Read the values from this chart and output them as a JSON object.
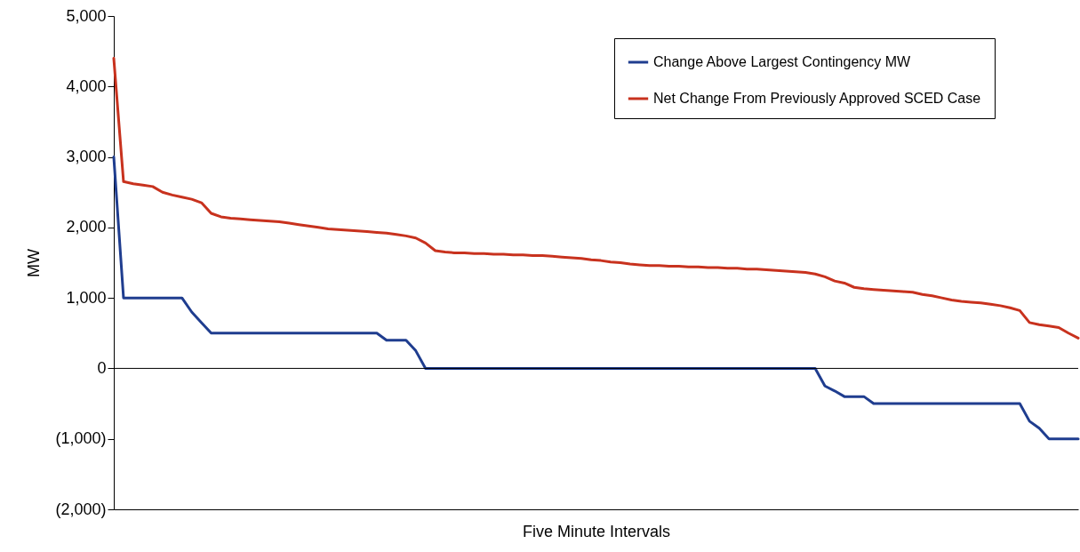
{
  "chart_data": {
    "type": "line",
    "xlabel": "Five Minute Intervals",
    "ylabel": "MW",
    "categories": [
      null,
      null,
      null,
      null,
      null,
      null,
      null,
      null,
      null,
      null,
      null,
      null,
      null,
      null,
      null,
      null,
      null,
      null,
      null,
      null,
      null,
      null,
      null,
      null,
      null,
      null,
      null,
      null,
      null,
      null,
      null,
      null,
      null,
      null,
      null,
      null,
      null,
      null,
      null,
      null,
      null,
      null,
      null,
      null,
      null,
      null,
      null,
      null,
      null,
      null,
      null,
      null,
      null,
      null,
      null,
      null,
      null,
      null,
      null,
      null,
      null,
      null,
      null,
      null,
      null,
      null,
      null,
      null,
      null,
      null,
      null,
      null,
      null,
      null,
      null,
      null,
      null,
      null,
      null,
      null,
      null,
      null,
      null,
      null,
      null,
      null,
      null,
      null,
      null,
      null,
      null,
      null,
      null,
      null,
      null,
      null,
      null,
      null,
      null,
      null
    ],
    "series": [
      {
        "name": "Change Above Largest Contingency MW",
        "color": "#1f3d8f",
        "values": [
          3000,
          1000,
          1000,
          1000,
          1000,
          1000,
          1000,
          1000,
          800,
          650,
          500,
          500,
          500,
          500,
          500,
          500,
          500,
          500,
          500,
          500,
          500,
          500,
          500,
          500,
          500,
          500,
          500,
          500,
          400,
          400,
          400,
          250,
          0,
          0,
          0,
          0,
          0,
          0,
          0,
          0,
          0,
          0,
          0,
          0,
          0,
          0,
          0,
          0,
          0,
          0,
          0,
          0,
          0,
          0,
          0,
          0,
          0,
          0,
          0,
          0,
          0,
          0,
          0,
          0,
          0,
          0,
          0,
          0,
          0,
          0,
          0,
          0,
          0,
          -250,
          -320,
          -400,
          -400,
          -400,
          -500,
          -500,
          -500,
          -500,
          -500,
          -500,
          -500,
          -500,
          -500,
          -500,
          -500,
          -500,
          -500,
          -500,
          -500,
          -500,
          -750,
          -850,
          -1000,
          -1000,
          -1000,
          -1000
        ]
      },
      {
        "name": "Net Change From Previously Approved SCED Case",
        "color": "#c8321e",
        "values": [
          4400,
          2650,
          2620,
          2600,
          2580,
          2500,
          2460,
          2430,
          2400,
          2350,
          2200,
          2150,
          2130,
          2120,
          2110,
          2100,
          2090,
          2080,
          2060,
          2040,
          2020,
          2000,
          1980,
          1970,
          1960,
          1950,
          1940,
          1930,
          1920,
          1900,
          1880,
          1850,
          1780,
          1670,
          1650,
          1640,
          1640,
          1630,
          1630,
          1620,
          1620,
          1610,
          1610,
          1600,
          1600,
          1590,
          1580,
          1570,
          1560,
          1540,
          1530,
          1510,
          1500,
          1480,
          1470,
          1460,
          1460,
          1450,
          1450,
          1440,
          1440,
          1430,
          1430,
          1420,
          1420,
          1410,
          1410,
          1400,
          1390,
          1380,
          1370,
          1360,
          1340,
          1300,
          1240,
          1210,
          1150,
          1130,
          1120,
          1110,
          1100,
          1090,
          1080,
          1050,
          1030,
          1000,
          970,
          950,
          940,
          930,
          910,
          890,
          860,
          820,
          650,
          620,
          600,
          580,
          500,
          430
        ]
      }
    ],
    "ylim": [
      -2000,
      5000
    ],
    "yticks": [
      {
        "value": -2000,
        "label": "(2,000)"
      },
      {
        "value": -1000,
        "label": "(1,000)"
      },
      0,
      {
        "value": 1000,
        "label": "1,000"
      },
      {
        "value": 2000,
        "label": "2,000"
      },
      {
        "value": 3000,
        "label": "3,000"
      },
      {
        "value": 4000,
        "label": "4,000"
      },
      {
        "value": 5000,
        "label": "5,000"
      }
    ],
    "ref_lines": [
      {
        "axis": "y",
        "value": 0,
        "color": "#000000"
      }
    ],
    "grid": false,
    "legend": "top right",
    "tick_labels": "y"
  }
}
